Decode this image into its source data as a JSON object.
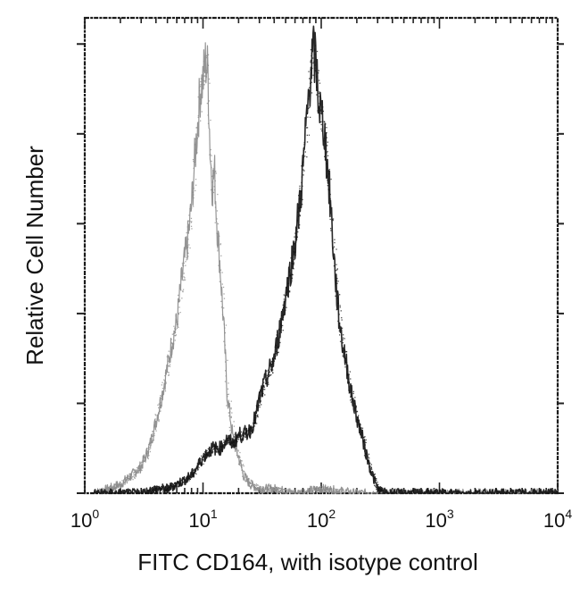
{
  "chart_data": {
    "type": "line",
    "title": "",
    "xlabel": "FITC CD164, with isotype control",
    "ylabel": "Relative Cell Number",
    "x_scale": "log",
    "xlim": [
      1,
      10000
    ],
    "ylim": [
      0,
      100
    ],
    "grid": false,
    "x_ticks": [
      {
        "value": 1,
        "base": "10",
        "exp": "0"
      },
      {
        "value": 10,
        "base": "10",
        "exp": "1"
      },
      {
        "value": 100,
        "base": "10",
        "exp": "2"
      },
      {
        "value": 1000,
        "base": "10",
        "exp": "3"
      },
      {
        "value": 10000,
        "base": "10",
        "exp": "4"
      }
    ],
    "y_ticks": [
      0,
      20,
      40,
      60,
      80,
      100
    ],
    "series": [
      {
        "color": "#8a8a8a",
        "x": [
          1.2,
          1.6,
          2.0,
          2.5,
          3.0,
          3.5,
          4.0,
          4.5,
          5.0,
          5.5,
          6.0,
          6.5,
          7.0,
          7.5,
          8.0,
          8.5,
          9.0,
          9.5,
          10.0,
          10.5,
          11.0,
          11.5,
          12.0,
          12.5,
          13.0,
          14.0,
          15.0,
          16.0,
          17.0,
          18.0,
          20.0,
          22.0,
          25.0,
          30.0,
          40.0,
          60.0,
          100.0,
          200.0,
          1000.0,
          10000.0
        ],
        "y": [
          0,
          1,
          2,
          4,
          6,
          10,
          16,
          22,
          28,
          34,
          38,
          46,
          52,
          57,
          64,
          74,
          82,
          90,
          92,
          96,
          94,
          76,
          68,
          72,
          62,
          50,
          37,
          22,
          17,
          12,
          8,
          4,
          2,
          1,
          1,
          0,
          1,
          0,
          0,
          0
        ]
      },
      {
        "color": "#111111",
        "x": [
          1.2,
          2.0,
          3.0,
          4.0,
          5.0,
          6.0,
          7.0,
          8.0,
          9.0,
          10.0,
          12.0,
          14.0,
          16.0,
          18.0,
          20.0,
          22.0,
          25.0,
          28.0,
          30.0,
          35.0,
          40.0,
          45.0,
          50.0,
          55.0,
          60.0,
          65.0,
          70.0,
          75.0,
          80.0,
          85.0,
          90.0,
          95.0,
          100.0,
          105.0,
          110.0,
          120.0,
          130.0,
          140.0,
          150.0,
          160.0,
          170.0,
          180.0,
          200.0,
          220.0,
          250.0,
          280.0,
          300.0,
          350.0,
          500.0,
          1000.0,
          10000.0
        ],
        "y": [
          0,
          0,
          0,
          1,
          1,
          2,
          3,
          4,
          6,
          8,
          10,
          10,
          12,
          11,
          13,
          13,
          14,
          17,
          21,
          26,
          30,
          37,
          44,
          50,
          56,
          63,
          72,
          82,
          92,
          98,
          96,
          88,
          84,
          82,
          76,
          64,
          50,
          40,
          34,
          30,
          26,
          22,
          17,
          13,
          7,
          3,
          1,
          0,
          0,
          0,
          0
        ]
      }
    ]
  }
}
